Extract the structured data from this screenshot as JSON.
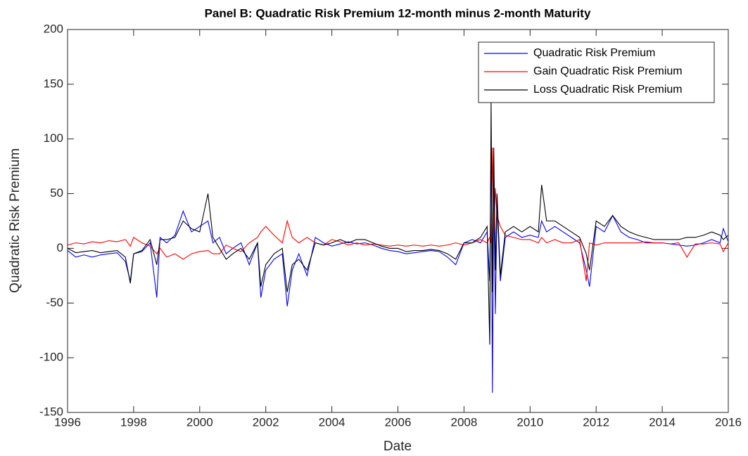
{
  "chart_data": {
    "type": "line",
    "title": "Panel B: Quadratic Risk Premium 12-month minus 2-month Maturity",
    "x_label": "Date",
    "y_label": "Quadratic Risk Premium",
    "xlim": [
      1996,
      2016
    ],
    "xticks": [
      1996,
      1998,
      2000,
      2002,
      2004,
      2006,
      2008,
      2010,
      2012,
      2014,
      2016
    ],
    "ylim": [
      -150,
      200
    ],
    "yticks": [
      -150,
      -100,
      -50,
      0,
      50,
      100,
      150,
      200
    ],
    "grid": false,
    "legend": "top-right",
    "x": [
      1996,
      1996.25,
      1996.5,
      1996.75,
      1997,
      1997.25,
      1997.5,
      1997.75,
      1997.9,
      1998,
      1998.25,
      1998.5,
      1998.7,
      1998.8,
      1999,
      1999.25,
      1999.5,
      1999.75,
      2000,
      2000.25,
      2000.4,
      2000.6,
      2000.8,
      2001,
      2001.25,
      2001.5,
      2001.75,
      2001.85,
      2002,
      2002.25,
      2002.5,
      2002.65,
      2002.8,
      2003,
      2003.25,
      2003.5,
      2003.75,
      2004,
      2004.25,
      2004.5,
      2004.75,
      2005,
      2005.25,
      2005.5,
      2005.75,
      2006,
      2006.25,
      2006.5,
      2006.75,
      2007,
      2007.25,
      2007.5,
      2007.75,
      2008,
      2008.25,
      2008.5,
      2008.7,
      2008.78,
      2008.82,
      2008.86,
      2008.9,
      2008.95,
      2009,
      2009.1,
      2009.25,
      2009.5,
      2009.75,
      2010,
      2010.25,
      2010.35,
      2010.5,
      2010.75,
      2011,
      2011.25,
      2011.5,
      2011.7,
      2011.8,
      2012,
      2012.25,
      2012.5,
      2012.75,
      2013,
      2013.25,
      2013.5,
      2013.75,
      2014,
      2014.25,
      2014.5,
      2014.75,
      2015,
      2015.25,
      2015.5,
      2015.75,
      2015.85,
      2016
    ],
    "series": [
      {
        "name": "Quadratic Risk Premium",
        "color": "#0000ff",
        "values": [
          -2,
          -8,
          -6,
          -8,
          -6,
          -5,
          -4,
          -12,
          -30,
          -5,
          -3,
          5,
          -45,
          10,
          5,
          12,
          34,
          15,
          20,
          25,
          5,
          10,
          -5,
          0,
          5,
          -15,
          5,
          -45,
          -20,
          -10,
          -5,
          -53,
          -20,
          -5,
          -25,
          10,
          5,
          2,
          4,
          6,
          4,
          5,
          3,
          0,
          -2,
          -3,
          -5,
          -4,
          -3,
          -2,
          -3,
          -8,
          -15,
          5,
          8,
          5,
          15,
          -30,
          100,
          -132,
          60,
          -60,
          40,
          -30,
          10,
          15,
          10,
          12,
          10,
          25,
          15,
          20,
          15,
          10,
          5,
          -20,
          -35,
          20,
          15,
          30,
          15,
          10,
          8,
          5,
          5,
          5,
          4,
          3,
          2,
          3,
          5,
          8,
          5,
          18,
          6
        ]
      },
      {
        "name": "Gain Quadratic Risk Premium",
        "color": "#ff0000",
        "values": [
          3,
          5,
          4,
          6,
          5,
          7,
          6,
          8,
          2,
          10,
          5,
          2,
          -5,
          0,
          -8,
          -5,
          -10,
          -5,
          -3,
          -2,
          -5,
          -5,
          3,
          0,
          -3,
          5,
          10,
          15,
          20,
          12,
          5,
          25,
          10,
          5,
          10,
          5,
          3,
          8,
          6,
          3,
          5,
          3,
          4,
          3,
          2,
          3,
          2,
          3,
          2,
          3,
          2,
          3,
          5,
          3,
          5,
          8,
          5,
          10,
          5,
          92,
          15,
          55,
          30,
          20,
          12,
          10,
          8,
          8,
          5,
          10,
          5,
          8,
          5,
          5,
          8,
          -30,
          5,
          3,
          5,
          5,
          5,
          5,
          5,
          6,
          5,
          5,
          4,
          5,
          -8,
          4,
          4,
          5,
          4,
          -3,
          5
        ]
      },
      {
        "name": "Loss Quadratic Risk Premium",
        "color": "#000000",
        "values": [
          0,
          -4,
          -3,
          -2,
          -4,
          -3,
          -2,
          -8,
          -32,
          -5,
          -2,
          8,
          -15,
          8,
          8,
          10,
          25,
          18,
          15,
          50,
          10,
          0,
          -10,
          -5,
          0,
          -10,
          5,
          -35,
          -15,
          -5,
          0,
          -40,
          -15,
          -10,
          -20,
          5,
          3,
          5,
          8,
          5,
          8,
          8,
          5,
          2,
          0,
          0,
          -3,
          -2,
          -2,
          -1,
          -2,
          -5,
          -10,
          5,
          5,
          10,
          20,
          -88,
          135,
          -40,
          92,
          -20,
          50,
          -25,
          15,
          20,
          15,
          20,
          15,
          58,
          25,
          25,
          20,
          15,
          10,
          -5,
          -20,
          25,
          20,
          30,
          20,
          15,
          12,
          10,
          8,
          8,
          8,
          8,
          10,
          10,
          12,
          15,
          12,
          8,
          12
        ]
      }
    ]
  }
}
